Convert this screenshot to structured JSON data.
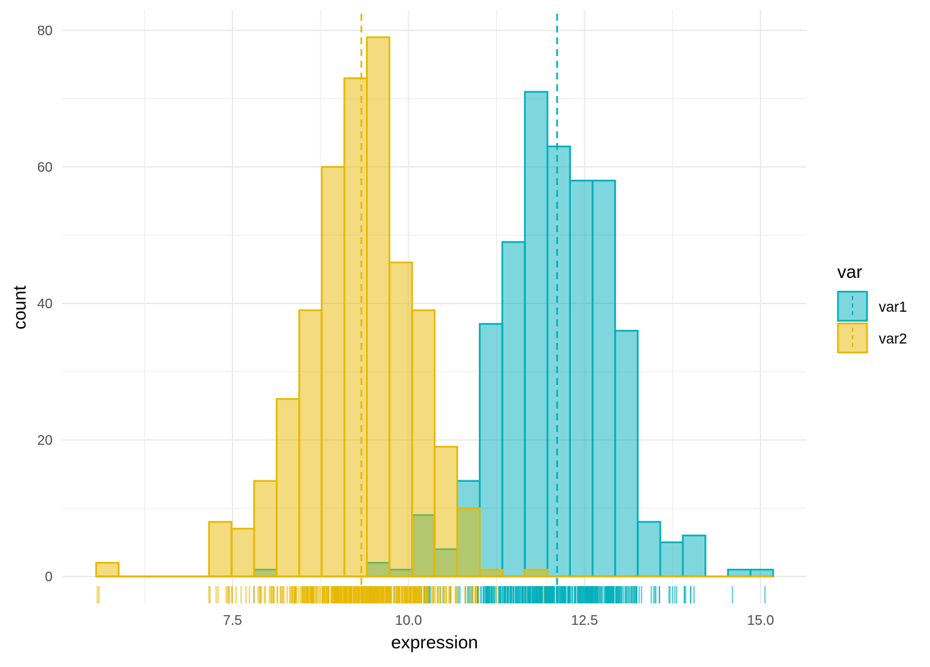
{
  "chart_data": {
    "type": "histogram",
    "title": "",
    "xlabel": "expression",
    "ylabel": "count",
    "xlim": [
      5.2,
      15.75
    ],
    "ylim": [
      0,
      80
    ],
    "x_ticks": [
      7.5,
      10.0,
      12.5,
      15.0
    ],
    "x_tick_labels": [
      "7.5",
      "10.0",
      "12.5",
      "15.0"
    ],
    "y_ticks": [
      0,
      20,
      40,
      60,
      80
    ],
    "y_tick_labels": [
      "0",
      "20",
      "40",
      "60",
      "80"
    ],
    "grid": true,
    "bin_start": 5.563,
    "bin_width": 0.3205,
    "legend": {
      "title": "var",
      "placement": "right"
    },
    "series": [
      {
        "name": "var1",
        "color": "#00AFBB",
        "mean": 12.11,
        "counts": [
          0,
          0,
          0,
          0,
          0,
          0,
          0,
          1,
          0,
          0,
          0,
          0,
          2,
          1,
          9,
          4,
          14,
          37,
          49,
          71,
          63,
          58,
          58,
          36,
          8,
          5,
          6,
          0,
          1,
          1
        ]
      },
      {
        "name": "var2",
        "color": "#E7B800",
        "mean": 9.33,
        "counts": [
          2,
          0,
          0,
          0,
          0,
          8,
          7,
          14,
          26,
          39,
          60,
          73,
          79,
          46,
          39,
          19,
          10,
          1,
          0,
          1,
          0,
          0,
          0,
          0,
          0,
          0,
          0,
          0,
          0,
          0
        ]
      }
    ]
  }
}
